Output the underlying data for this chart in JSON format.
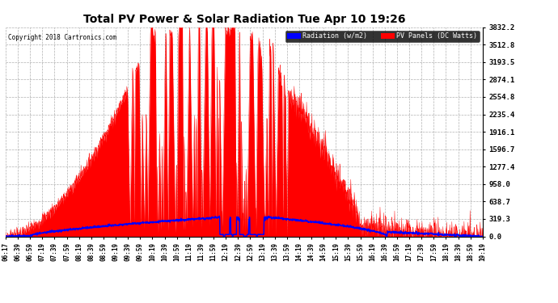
{
  "title": "Total PV Power & Solar Radiation Tue Apr 10 19:26",
  "copyright": "Copyright 2018 Cartronics.com",
  "background_color": "#ffffff",
  "plot_bg_color": "#ffffff",
  "grid_color": "#b0b0b0",
  "y_ticks": [
    0.0,
    319.3,
    638.7,
    958.0,
    1277.4,
    1596.7,
    1916.1,
    2235.4,
    2554.8,
    2874.1,
    3193.5,
    3512.8,
    3832.2
  ],
  "y_max": 3832.2,
  "x_labels": [
    "06:17",
    "06:39",
    "06:59",
    "07:19",
    "07:39",
    "07:59",
    "08:19",
    "08:39",
    "08:59",
    "09:19",
    "09:39",
    "09:59",
    "10:19",
    "10:39",
    "10:59",
    "11:19",
    "11:39",
    "11:59",
    "12:19",
    "12:39",
    "12:59",
    "13:19",
    "13:39",
    "13:59",
    "14:19",
    "14:39",
    "14:59",
    "15:19",
    "15:39",
    "15:59",
    "16:19",
    "16:39",
    "16:59",
    "17:19",
    "17:39",
    "17:59",
    "18:19",
    "18:39",
    "18:59",
    "19:19"
  ],
  "pv_color": "#ff0000",
  "radiation_color": "#0000ff",
  "legend_radiation_bg": "#0000ff",
  "legend_pv_bg": "#ff0000"
}
